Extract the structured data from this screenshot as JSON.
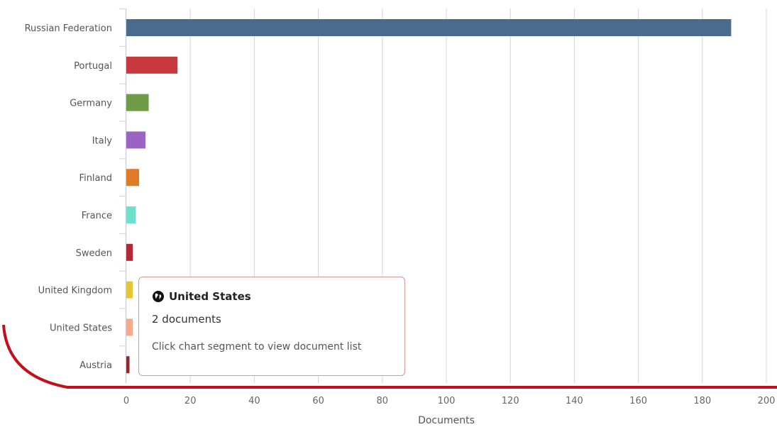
{
  "chart_data": {
    "type": "bar",
    "orientation": "horizontal",
    "categories": [
      "Russian Federation",
      "Portugal",
      "Germany",
      "Italy",
      "Finland",
      "France",
      "Sweden",
      "United Kingdom",
      "United States",
      "Austria"
    ],
    "values": [
      189,
      16,
      7,
      6,
      4,
      3,
      2,
      2,
      2,
      1
    ],
    "colors": [
      "#4a6b8e",
      "#c8393f",
      "#6f9a47",
      "#9b63c4",
      "#e07b2a",
      "#6ee0cc",
      "#b22a36",
      "#e6c53b",
      "#f2a98c",
      "#8a2a33"
    ],
    "xlabel": "Documents",
    "xlim": [
      0,
      200
    ],
    "xticks": [
      0,
      20,
      40,
      60,
      80,
      100,
      120,
      140,
      160,
      180,
      200
    ],
    "grid": "vertical"
  },
  "tooltip": {
    "icon": "globe-icon",
    "title": "United States",
    "count_text": "2 documents",
    "hint": "Click chart segment to view document list"
  },
  "accent_color": "#c0101a"
}
